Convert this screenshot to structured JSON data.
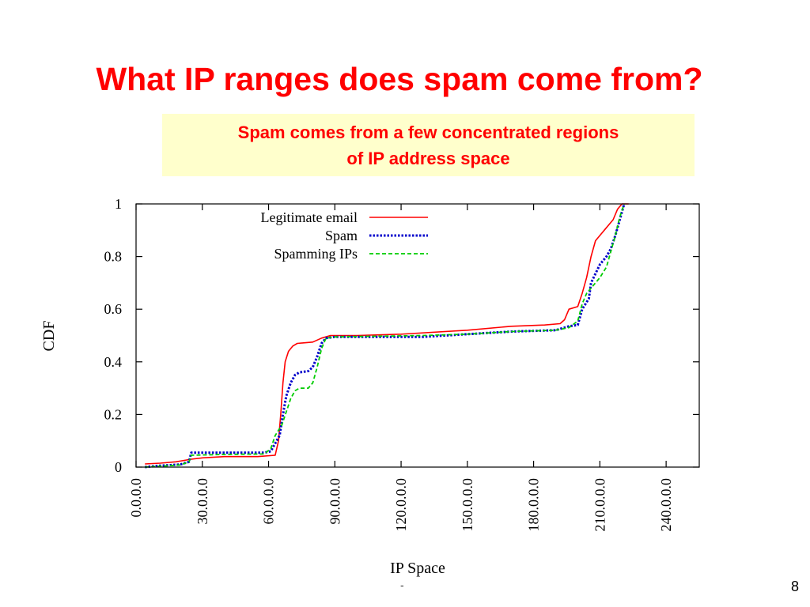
{
  "slide": {
    "title": "What IP ranges does spam come from?",
    "callout_line1": "Spam comes from a few concentrated regions",
    "callout_line2": "of IP address space",
    "footer_mark": "-",
    "page_number": "8",
    "title_color": "#ff0000",
    "callout_bg": "#ffffcc"
  },
  "chart_data": {
    "type": "line",
    "title": "",
    "xlabel": "IP Space",
    "ylabel": "CDF",
    "xlim": [
      0,
      255
    ],
    "ylim": [
      0,
      1
    ],
    "grid": false,
    "legend_position": "top-left",
    "x_ticks": [
      {
        "value": 0,
        "label": "0.0.0.0"
      },
      {
        "value": 30,
        "label": "30.0.0.0"
      },
      {
        "value": 60,
        "label": "60.0.0.0"
      },
      {
        "value": 90,
        "label": "90.0.0.0"
      },
      {
        "value": 120,
        "label": "120.0.0.0"
      },
      {
        "value": 150,
        "label": "150.0.0.0"
      },
      {
        "value": 180,
        "label": "180.0.0.0"
      },
      {
        "value": 210,
        "label": "210.0.0.0"
      },
      {
        "value": 240,
        "label": "240.0.0.0"
      }
    ],
    "y_ticks": [
      {
        "value": 0,
        "label": "0"
      },
      {
        "value": 0.2,
        "label": "0.2"
      },
      {
        "value": 0.4,
        "label": "0.4"
      },
      {
        "value": 0.6,
        "label": "0.6"
      },
      {
        "value": 0.8,
        "label": "0.8"
      },
      {
        "value": 1,
        "label": "1"
      }
    ],
    "series": [
      {
        "name": "Legitimate email",
        "color": "#ff0000",
        "dash": "solid",
        "points": [
          [
            4,
            0.012
          ],
          [
            11,
            0.015
          ],
          [
            18,
            0.02
          ],
          [
            25,
            0.03
          ],
          [
            30,
            0.035
          ],
          [
            40,
            0.04
          ],
          [
            55,
            0.04
          ],
          [
            63,
            0.045
          ],
          [
            64.5,
            0.1
          ],
          [
            65.5,
            0.2
          ],
          [
            66.5,
            0.32
          ],
          [
            67.5,
            0.4
          ],
          [
            69,
            0.44
          ],
          [
            71,
            0.46
          ],
          [
            73,
            0.47
          ],
          [
            80,
            0.475
          ],
          [
            84,
            0.49
          ],
          [
            88,
            0.5
          ],
          [
            100,
            0.5
          ],
          [
            120,
            0.505
          ],
          [
            150,
            0.52
          ],
          [
            170,
            0.535
          ],
          [
            185,
            0.54
          ],
          [
            192,
            0.545
          ],
          [
            194,
            0.56
          ],
          [
            196,
            0.6
          ],
          [
            200,
            0.61
          ],
          [
            202,
            0.66
          ],
          [
            204,
            0.72
          ],
          [
            206,
            0.8
          ],
          [
            208,
            0.86
          ],
          [
            212,
            0.9
          ],
          [
            216,
            0.94
          ],
          [
            218,
            0.98
          ],
          [
            220,
            1.0
          ],
          [
            223,
            1.0
          ]
        ]
      },
      {
        "name": "Spam",
        "color": "#0000cc",
        "dash": "dotted",
        "points": [
          [
            4,
            0.0
          ],
          [
            10,
            0.005
          ],
          [
            20,
            0.01
          ],
          [
            24,
            0.02
          ],
          [
            25,
            0.055
          ],
          [
            40,
            0.055
          ],
          [
            58,
            0.055
          ],
          [
            61,
            0.06
          ],
          [
            63,
            0.09
          ],
          [
            65,
            0.12
          ],
          [
            66.5,
            0.2
          ],
          [
            68,
            0.27
          ],
          [
            70,
            0.32
          ],
          [
            72,
            0.35
          ],
          [
            74,
            0.36
          ],
          [
            78,
            0.365
          ],
          [
            80,
            0.38
          ],
          [
            82,
            0.42
          ],
          [
            84,
            0.47
          ],
          [
            86,
            0.49
          ],
          [
            90,
            0.495
          ],
          [
            130,
            0.495
          ],
          [
            150,
            0.505
          ],
          [
            170,
            0.515
          ],
          [
            190,
            0.52
          ],
          [
            196,
            0.535
          ],
          [
            200,
            0.54
          ],
          [
            202,
            0.6
          ],
          [
            205,
            0.64
          ],
          [
            206,
            0.7
          ],
          [
            210,
            0.77
          ],
          [
            213,
            0.8
          ],
          [
            215,
            0.83
          ],
          [
            217,
            0.88
          ],
          [
            219,
            0.94
          ],
          [
            221,
            1.0
          ]
        ]
      },
      {
        "name": "Spamming IPs",
        "color": "#00cc00",
        "dash": "dashed",
        "points": [
          [
            4,
            0.0
          ],
          [
            10,
            0.003
          ],
          [
            20,
            0.008
          ],
          [
            24,
            0.02
          ],
          [
            25,
            0.045
          ],
          [
            40,
            0.048
          ],
          [
            58,
            0.05
          ],
          [
            61,
            0.07
          ],
          [
            63,
            0.12
          ],
          [
            66,
            0.16
          ],
          [
            68,
            0.21
          ],
          [
            70,
            0.26
          ],
          [
            72,
            0.29
          ],
          [
            74,
            0.3
          ],
          [
            78,
            0.3
          ],
          [
            80,
            0.32
          ],
          [
            82,
            0.38
          ],
          [
            84,
            0.45
          ],
          [
            86,
            0.49
          ],
          [
            90,
            0.495
          ],
          [
            130,
            0.5
          ],
          [
            150,
            0.505
          ],
          [
            170,
            0.515
          ],
          [
            190,
            0.52
          ],
          [
            196,
            0.53
          ],
          [
            200,
            0.555
          ],
          [
            202,
            0.62
          ],
          [
            204,
            0.66
          ],
          [
            206,
            0.68
          ],
          [
            210,
            0.72
          ],
          [
            213,
            0.76
          ],
          [
            215,
            0.82
          ],
          [
            217,
            0.88
          ],
          [
            219,
            0.95
          ],
          [
            221,
            1.0
          ]
        ]
      }
    ]
  }
}
